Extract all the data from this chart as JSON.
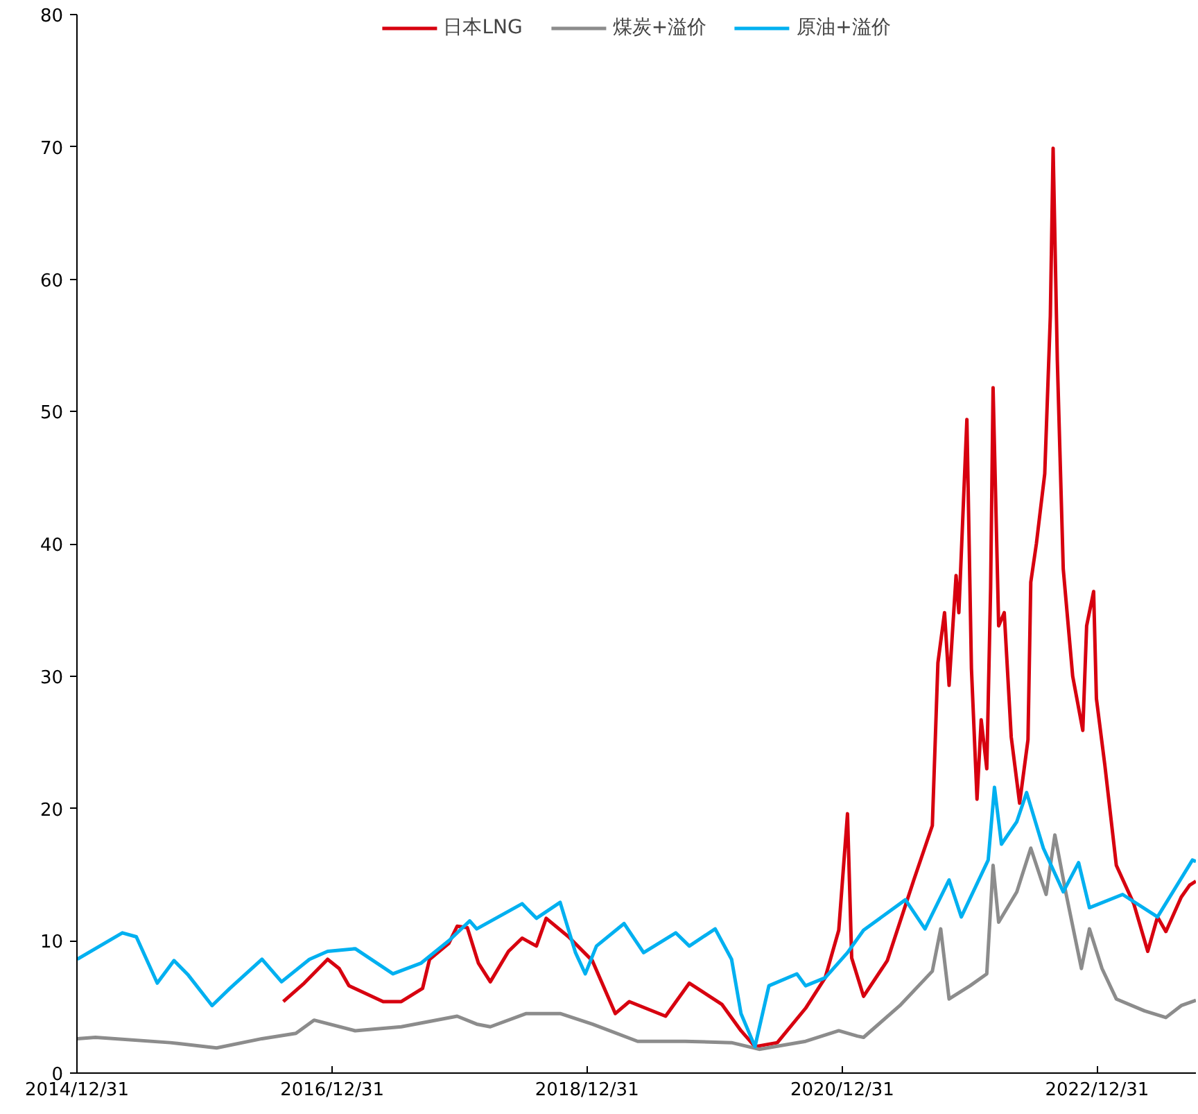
{
  "chart_data": {
    "type": "line",
    "legend": "top",
    "grid": false,
    "line_style": "solid",
    "marker": "none",
    "xlim": [
      "2014-12-31",
      "2023-10-10"
    ],
    "xticks": [
      {
        "value": "2014-12-31",
        "label": "2014/12/31"
      },
      {
        "value": "2016-12-31",
        "label": "2016/12/31"
      },
      {
        "value": "2018-12-31",
        "label": "2018/12/31"
      },
      {
        "value": "2020-12-31",
        "label": "2020/12/31"
      },
      {
        "value": "2022-12-31",
        "label": "2022/12/31"
      }
    ],
    "ylim": [
      0,
      80
    ],
    "yticks": [
      0,
      10,
      20,
      30,
      40,
      50,
      60,
      70,
      80
    ],
    "series": [
      {
        "name": "日本LNG",
        "color": "#d7000f",
        "x": [
          "2016-08-13",
          "2016-10-12",
          "2016-12-18",
          "2017-01-20",
          "2017-02-17",
          "2017-05-26",
          "2017-07-17",
          "2017-09-16",
          "2017-10-06",
          "2017-11-30",
          "2017-12-24",
          "2018-01-22",
          "2018-02-23",
          "2018-03-29",
          "2018-05-20",
          "2018-06-28",
          "2018-08-08",
          "2018-09-05",
          "2018-11-08",
          "2019-01-15",
          "2019-03-22",
          "2019-05-01",
          "2019-08-13",
          "2019-10-20",
          "2020-01-21",
          "2020-03-16",
          "2020-04-25",
          "2020-06-28",
          "2020-09-17",
          "2020-11-12",
          "2020-12-21",
          "2021-01-15",
          "2021-01-27",
          "2021-03-02",
          "2021-05-09",
          "2021-07-24",
          "2021-09-15",
          "2021-10-01",
          "2021-10-20",
          "2021-11-02",
          "2021-11-22",
          "2021-11-30",
          "2021-12-23",
          "2022-01-05",
          "2022-01-21",
          "2022-02-02",
          "2022-02-18",
          "2022-03-01",
          "2022-03-08",
          "2022-03-24",
          "2022-04-09",
          "2022-04-29",
          "2022-05-23",
          "2022-06-16",
          "2022-06-24",
          "2022-07-10",
          "2022-08-03",
          "2022-08-19",
          "2022-08-27",
          "2022-09-08",
          "2022-09-25",
          "2022-10-22",
          "2022-11-20",
          "2022-12-01",
          "2022-12-21",
          "2022-12-29",
          "2023-01-22",
          "2023-02-24",
          "2023-04-15",
          "2023-05-25",
          "2023-06-22",
          "2023-07-16",
          "2023-08-29",
          "2023-09-22",
          "2023-10-10"
        ],
        "values": [
          5.4,
          6.8,
          8.6,
          7.9,
          6.6,
          5.4,
          5.4,
          6.4,
          8.6,
          9.8,
          11.1,
          11.0,
          8.3,
          6.9,
          9.2,
          10.2,
          9.6,
          11.7,
          10.3,
          8.5,
          4.5,
          5.4,
          4.3,
          6.8,
          5.2,
          3.2,
          2.0,
          2.3,
          4.9,
          7.2,
          10.8,
          19.6,
          8.7,
          5.8,
          8.5,
          14.6,
          18.7,
          31.0,
          34.8,
          29.3,
          37.6,
          34.8,
          49.4,
          30.6,
          20.7,
          26.7,
          23.0,
          36.7,
          51.8,
          33.8,
          34.8,
          25.4,
          20.4,
          25.2,
          37.1,
          40.0,
          45.3,
          57.2,
          69.9,
          53.9,
          38.1,
          30.0,
          25.9,
          33.8,
          36.4,
          28.3,
          23.3,
          15.7,
          12.8,
          9.2,
          11.8,
          10.7,
          13.3,
          14.2,
          14.5
        ]
      },
      {
        "name": "煤炭+溢价",
        "color": "#8c8c8c",
        "x": [
          "2015-01-01",
          "2015-02-22",
          "2015-09-24",
          "2016-02-04",
          "2016-06-13",
          "2016-09-18",
          "2016-11-09",
          "2017-03-07",
          "2017-07-17",
          "2017-12-24",
          "2018-02-18",
          "2018-03-29",
          "2018-07-10",
          "2018-10-15",
          "2019-01-15",
          "2019-05-25",
          "2019-10-08",
          "2020-02-18",
          "2020-05-07",
          "2020-09-17",
          "2020-12-21",
          "2021-02-12",
          "2021-03-02",
          "2021-06-14",
          "2021-09-15",
          "2021-10-09",
          "2021-11-02",
          "2022-01-01",
          "2022-02-18",
          "2022-03-08",
          "2022-03-24",
          "2022-05-15",
          "2022-06-24",
          "2022-08-07",
          "2022-09-01",
          "2022-10-02",
          "2022-11-16",
          "2022-12-09",
          "2023-01-14",
          "2023-02-24",
          "2023-05-16",
          "2023-07-16",
          "2023-08-29",
          "2023-10-10"
        ],
        "values": [
          2.6,
          2.7,
          2.3,
          1.9,
          2.6,
          3.0,
          4.0,
          3.2,
          3.5,
          4.3,
          3.7,
          3.5,
          4.5,
          4.5,
          3.7,
          2.4,
          2.4,
          2.3,
          1.8,
          2.4,
          3.2,
          2.8,
          2.7,
          5.1,
          7.7,
          10.9,
          5.6,
          6.6,
          7.5,
          15.7,
          11.4,
          13.7,
          17.0,
          13.5,
          18.0,
          13.7,
          7.9,
          10.9,
          7.9,
          5.6,
          4.7,
          4.2,
          5.1,
          5.5
        ]
      },
      {
        "name": "原油+溢价",
        "color": "#00b0f0",
        "x": [
          "2015-01-01",
          "2015-05-10",
          "2015-06-19",
          "2015-08-18",
          "2015-10-05",
          "2015-11-15",
          "2016-01-22",
          "2016-03-13",
          "2016-06-13",
          "2016-08-08",
          "2016-10-27",
          "2016-12-18",
          "2017-03-07",
          "2017-06-23",
          "2017-09-11",
          "2017-11-30",
          "2018-01-29",
          "2018-02-18",
          "2018-06-28",
          "2018-08-08",
          "2018-10-15",
          "2018-11-28",
          "2018-12-26",
          "2019-01-27",
          "2019-04-16",
          "2019-06-11",
          "2019-09-11",
          "2019-10-20",
          "2020-01-02",
          "2020-02-18",
          "2020-03-16",
          "2020-04-25",
          "2020-06-04",
          "2020-08-23",
          "2020-09-17",
          "2020-11-12",
          "2021-01-15",
          "2021-03-02",
          "2021-06-30",
          "2021-08-25",
          "2021-11-02",
          "2021-12-07",
          "2022-02-22",
          "2022-03-12",
          "2022-04-01",
          "2022-05-15",
          "2022-06-12",
          "2022-07-30",
          "2022-09-25",
          "2022-11-08",
          "2022-12-09",
          "2023-03-14",
          "2023-06-22",
          "2023-09-30",
          "2023-10-10"
        ],
        "values": [
          8.6,
          10.6,
          10.3,
          6.8,
          8.5,
          7.4,
          5.1,
          6.4,
          8.6,
          6.9,
          8.6,
          9.2,
          9.4,
          7.5,
          8.3,
          10.0,
          11.5,
          10.9,
          12.8,
          11.7,
          12.9,
          9.1,
          7.5,
          9.6,
          11.3,
          9.1,
          10.6,
          9.6,
          10.9,
          8.6,
          4.5,
          2.0,
          6.6,
          7.5,
          6.6,
          7.2,
          9.1,
          10.8,
          13.1,
          10.9,
          14.6,
          11.8,
          16.1,
          21.6,
          17.3,
          19.0,
          21.2,
          17.0,
          13.7,
          15.9,
          12.5,
          13.5,
          11.8,
          16.1,
          16.0
        ]
      }
    ]
  }
}
